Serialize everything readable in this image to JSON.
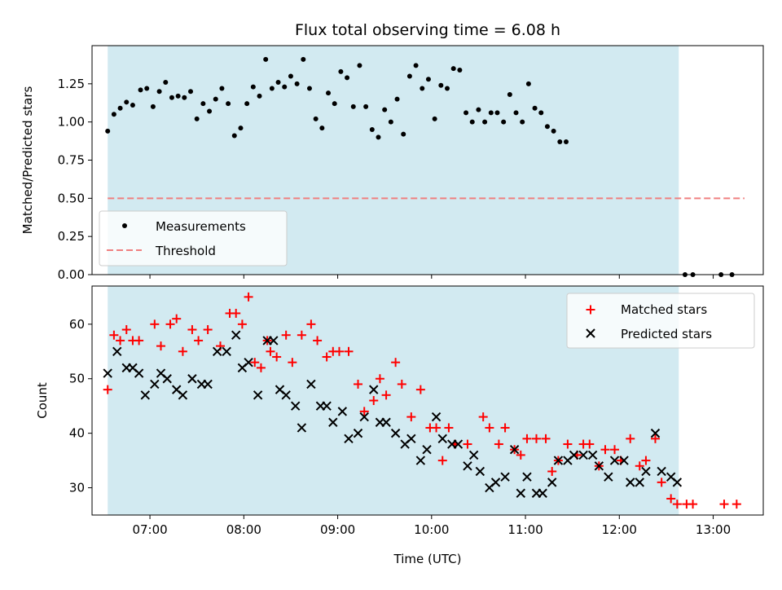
{
  "chart_data": [
    {
      "panel": "top",
      "type": "scatter",
      "title": "Flux total observing time = 6.08 h",
      "xlabel": "",
      "ylabel": "Matched/Predicted stars",
      "xlim": [
        "06:23",
        "13:32"
      ],
      "ylim": [
        0,
        1.5
      ],
      "yticks": [
        0.0,
        0.25,
        0.5,
        0.75,
        1.0,
        1.25
      ],
      "ytick_labels": [
        "0.00",
        "0.25",
        "0.50",
        "0.75",
        "1.00",
        "1.25"
      ],
      "observing_window": {
        "start": "06:33",
        "end": "12:38",
        "color": "#add8e6"
      },
      "threshold": {
        "name": "Threshold",
        "value": 0.5,
        "x_range": [
          "06:33",
          "13:20"
        ],
        "color": "#f08080",
        "style": "dashed"
      },
      "legend_position": "lower-left",
      "series": [
        {
          "name": "Measurements",
          "marker": "dot",
          "color": "#000000",
          "points": [
            [
              "06:33",
              0.94
            ],
            [
              "06:37",
              1.05
            ],
            [
              "06:41",
              1.09
            ],
            [
              "06:45",
              1.13
            ],
            [
              "06:49",
              1.11
            ],
            [
              "06:54",
              1.21
            ],
            [
              "06:58",
              1.22
            ],
            [
              "07:02",
              1.1
            ],
            [
              "07:06",
              1.2
            ],
            [
              "07:10",
              1.26
            ],
            [
              "07:14",
              1.16
            ],
            [
              "07:18",
              1.17
            ],
            [
              "07:22",
              1.16
            ],
            [
              "07:26",
              1.2
            ],
            [
              "07:30",
              1.02
            ],
            [
              "07:34",
              1.12
            ],
            [
              "07:38",
              1.07
            ],
            [
              "07:42",
              1.15
            ],
            [
              "07:46",
              1.22
            ],
            [
              "07:50",
              1.12
            ],
            [
              "07:54",
              0.91
            ],
            [
              "07:58",
              0.96
            ],
            [
              "08:02",
              1.12
            ],
            [
              "08:06",
              1.23
            ],
            [
              "08:10",
              1.17
            ],
            [
              "08:14",
              1.41
            ],
            [
              "08:18",
              1.22
            ],
            [
              "08:22",
              1.26
            ],
            [
              "08:26",
              1.23
            ],
            [
              "08:30",
              1.3
            ],
            [
              "08:34",
              1.25
            ],
            [
              "08:38",
              1.41
            ],
            [
              "08:42",
              1.22
            ],
            [
              "08:46",
              1.02
            ],
            [
              "08:50",
              0.96
            ],
            [
              "08:54",
              1.19
            ],
            [
              "08:58",
              1.12
            ],
            [
              "09:02",
              1.33
            ],
            [
              "09:06",
              1.29
            ],
            [
              "09:10",
              1.1
            ],
            [
              "09:14",
              1.37
            ],
            [
              "09:18",
              1.1
            ],
            [
              "09:22",
              0.95
            ],
            [
              "09:26",
              0.9
            ],
            [
              "09:30",
              1.08
            ],
            [
              "09:34",
              1.0
            ],
            [
              "09:38",
              1.15
            ],
            [
              "09:42",
              0.92
            ],
            [
              "09:46",
              1.3
            ],
            [
              "09:50",
              1.37
            ],
            [
              "09:54",
              1.22
            ],
            [
              "09:58",
              1.28
            ],
            [
              "10:02",
              1.02
            ],
            [
              "10:06",
              1.24
            ],
            [
              "10:10",
              1.22
            ],
            [
              "10:14",
              1.35
            ],
            [
              "10:18",
              1.34
            ],
            [
              "10:22",
              1.06
            ],
            [
              "10:26",
              1.0
            ],
            [
              "10:30",
              1.08
            ],
            [
              "10:34",
              1.0
            ],
            [
              "10:38",
              1.06
            ],
            [
              "10:42",
              1.06
            ],
            [
              "10:46",
              1.0
            ],
            [
              "10:50",
              1.18
            ],
            [
              "10:54",
              1.06
            ],
            [
              "10:58",
              1.0
            ],
            [
              "11:02",
              1.25
            ],
            [
              "11:06",
              1.09
            ],
            [
              "11:10",
              1.06
            ],
            [
              "11:14",
              0.97
            ],
            [
              "11:18",
              0.94
            ],
            [
              "11:22",
              0.87
            ],
            [
              "11:26",
              0.87
            ],
            [
              "12:42",
              0.0
            ],
            [
              "12:47",
              0.0
            ],
            [
              "13:05",
              0.0
            ],
            [
              "13:12",
              0.0
            ]
          ]
        }
      ]
    },
    {
      "panel": "bottom",
      "type": "scatter",
      "title": "",
      "xlabel": "Time (UTC)",
      "ylabel": "Count",
      "xlim": [
        "06:23",
        "13:32"
      ],
      "ylim": [
        25,
        67
      ],
      "xticks": [
        "07:00",
        "08:00",
        "09:00",
        "10:00",
        "11:00",
        "12:00",
        "13:00"
      ],
      "yticks": [
        30,
        40,
        50,
        60
      ],
      "observing_window": {
        "start": "06:33",
        "end": "12:38",
        "color": "#add8e6"
      },
      "legend_position": "top-right",
      "series": [
        {
          "name": "Matched stars",
          "marker": "plus",
          "color": "#ff0000",
          "points": [
            [
              "06:33",
              48
            ],
            [
              "06:37",
              58
            ],
            [
              "06:41",
              57
            ],
            [
              "06:45",
              59
            ],
            [
              "06:49",
              57
            ],
            [
              "06:53",
              57
            ],
            [
              "07:03",
              60
            ],
            [
              "07:07",
              56
            ],
            [
              "07:13",
              60
            ],
            [
              "07:17",
              61
            ],
            [
              "07:21",
              55
            ],
            [
              "07:27",
              59
            ],
            [
              "07:31",
              57
            ],
            [
              "07:37",
              59
            ],
            [
              "07:45",
              56
            ],
            [
              "07:51",
              62
            ],
            [
              "07:55",
              62
            ],
            [
              "07:59",
              60
            ],
            [
              "08:03",
              65
            ],
            [
              "08:07",
              53
            ],
            [
              "08:11",
              52
            ],
            [
              "08:15",
              57
            ],
            [
              "08:17",
              55
            ],
            [
              "08:21",
              54
            ],
            [
              "08:27",
              58
            ],
            [
              "08:31",
              53
            ],
            [
              "08:37",
              58
            ],
            [
              "08:43",
              60
            ],
            [
              "08:47",
              57
            ],
            [
              "08:53",
              54
            ],
            [
              "08:57",
              55
            ],
            [
              "09:01",
              55
            ],
            [
              "09:07",
              55
            ],
            [
              "09:13",
              49
            ],
            [
              "09:17",
              44
            ],
            [
              "09:23",
              46
            ],
            [
              "09:27",
              50
            ],
            [
              "09:31",
              47
            ],
            [
              "09:37",
              53
            ],
            [
              "09:41",
              49
            ],
            [
              "09:47",
              43
            ],
            [
              "09:53",
              48
            ],
            [
              "09:59",
              41
            ],
            [
              "10:03",
              41
            ],
            [
              "10:07",
              35
            ],
            [
              "10:11",
              41
            ],
            [
              "10:15",
              38
            ],
            [
              "10:23",
              38
            ],
            [
              "10:33",
              43
            ],
            [
              "10:37",
              41
            ],
            [
              "10:43",
              38
            ],
            [
              "10:47",
              41
            ],
            [
              "10:53",
              37
            ],
            [
              "10:57",
              36
            ],
            [
              "11:01",
              39
            ],
            [
              "11:07",
              39
            ],
            [
              "11:13",
              39
            ],
            [
              "11:17",
              33
            ],
            [
              "11:21",
              35
            ],
            [
              "11:27",
              38
            ],
            [
              "11:33",
              36
            ],
            [
              "11:37",
              38
            ],
            [
              "11:41",
              38
            ],
            [
              "11:47",
              34
            ],
            [
              "11:51",
              37
            ],
            [
              "11:57",
              37
            ],
            [
              "12:01",
              35
            ],
            [
              "12:07",
              39
            ],
            [
              "12:13",
              34
            ],
            [
              "12:17",
              35
            ],
            [
              "12:23",
              39
            ],
            [
              "12:27",
              31
            ],
            [
              "12:33",
              28
            ],
            [
              "12:37",
              27
            ],
            [
              "12:43",
              27
            ],
            [
              "12:47",
              27
            ],
            [
              "13:07",
              27
            ],
            [
              "13:15",
              27
            ]
          ]
        },
        {
          "name": "Predicted stars",
          "marker": "x",
          "color": "#000000",
          "points": [
            [
              "06:33",
              51
            ],
            [
              "06:39",
              55
            ],
            [
              "06:45",
              52
            ],
            [
              "06:49",
              52
            ],
            [
              "06:53",
              51
            ],
            [
              "06:57",
              47
            ],
            [
              "07:03",
              49
            ],
            [
              "07:07",
              51
            ],
            [
              "07:11",
              50
            ],
            [
              "07:17",
              48
            ],
            [
              "07:21",
              47
            ],
            [
              "07:27",
              50
            ],
            [
              "07:33",
              49
            ],
            [
              "07:37",
              49
            ],
            [
              "07:43",
              55
            ],
            [
              "07:49",
              55
            ],
            [
              "07:55",
              58
            ],
            [
              "07:59",
              52
            ],
            [
              "08:03",
              53
            ],
            [
              "08:09",
              47
            ],
            [
              "08:15",
              57
            ],
            [
              "08:19",
              57
            ],
            [
              "08:23",
              48
            ],
            [
              "08:27",
              47
            ],
            [
              "08:33",
              45
            ],
            [
              "08:37",
              41
            ],
            [
              "08:43",
              49
            ],
            [
              "08:49",
              45
            ],
            [
              "08:53",
              45
            ],
            [
              "08:57",
              42
            ],
            [
              "09:03",
              44
            ],
            [
              "09:07",
              39
            ],
            [
              "09:13",
              40
            ],
            [
              "09:17",
              43
            ],
            [
              "09:23",
              48
            ],
            [
              "09:27",
              42
            ],
            [
              "09:31",
              42
            ],
            [
              "09:37",
              40
            ],
            [
              "09:43",
              38
            ],
            [
              "09:47",
              39
            ],
            [
              "09:53",
              35
            ],
            [
              "09:57",
              37
            ],
            [
              "10:03",
              43
            ],
            [
              "10:07",
              39
            ],
            [
              "10:13",
              38
            ],
            [
              "10:17",
              38
            ],
            [
              "10:23",
              34
            ],
            [
              "10:27",
              36
            ],
            [
              "10:31",
              33
            ],
            [
              "10:37",
              30
            ],
            [
              "10:41",
              31
            ],
            [
              "10:47",
              32
            ],
            [
              "10:53",
              37
            ],
            [
              "10:57",
              29
            ],
            [
              "11:01",
              32
            ],
            [
              "11:07",
              29
            ],
            [
              "11:11",
              29
            ],
            [
              "11:17",
              31
            ],
            [
              "11:21",
              35
            ],
            [
              "11:27",
              35
            ],
            [
              "11:31",
              36
            ],
            [
              "11:37",
              36
            ],
            [
              "11:43",
              36
            ],
            [
              "11:47",
              34
            ],
            [
              "11:53",
              32
            ],
            [
              "11:57",
              35
            ],
            [
              "12:03",
              35
            ],
            [
              "12:07",
              31
            ],
            [
              "12:13",
              31
            ],
            [
              "12:17",
              33
            ],
            [
              "12:23",
              40
            ],
            [
              "12:27",
              33
            ],
            [
              "12:33",
              32
            ],
            [
              "12:37",
              31
            ]
          ]
        }
      ]
    }
  ]
}
